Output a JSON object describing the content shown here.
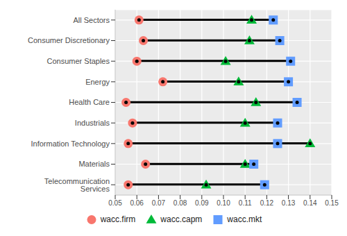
{
  "chart_data": {
    "type": "dumbbell",
    "orientation": "horizontal",
    "grid": true,
    "categories": [
      "All Sectors",
      "Consumer Discretionary",
      "Consumer Staples",
      "Energy",
      "Health Care",
      "Industrials",
      "Information Technology",
      "Materials",
      "Telecommunication Services"
    ],
    "series": [
      {
        "name": "wacc.firm",
        "color": "#F8766D",
        "marker": "circle",
        "values": [
          0.061,
          0.063,
          0.06,
          0.072,
          0.055,
          0.058,
          0.056,
          0.064,
          0.056
        ]
      },
      {
        "name": "wacc.capm",
        "color": "#00BA38",
        "marker": "triangle",
        "values": [
          0.113,
          0.112,
          0.101,
          0.107,
          0.115,
          0.11,
          0.14,
          0.11,
          0.092
        ]
      },
      {
        "name": "wacc.mkt",
        "color": "#619CFF",
        "marker": "square",
        "values": [
          0.123,
          0.126,
          0.131,
          0.13,
          0.134,
          0.125,
          0.125,
          0.114,
          0.119
        ]
      }
    ],
    "xlim": [
      0.05,
      0.15
    ],
    "xticks": [
      0.05,
      0.06,
      0.07,
      0.08,
      0.09,
      {
        "value": 0.1,
        "label": "0.10"
      },
      0.11,
      0.12,
      0.13,
      0.14,
      0.15
    ]
  }
}
